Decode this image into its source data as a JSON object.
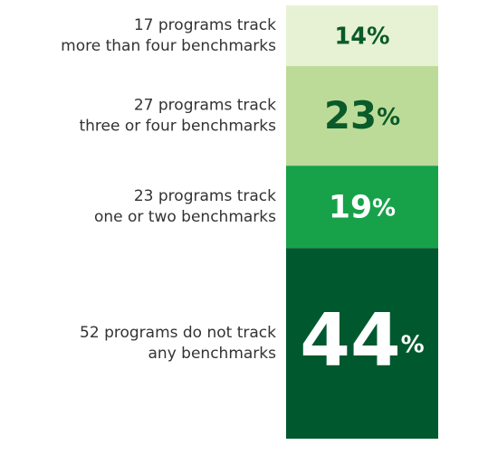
{
  "chart_data": {
    "type": "stacked-column",
    "categories": [
      [
        "17 programs track",
        "more than four benchmarks"
      ],
      [
        "27 programs track",
        "three or four benchmarks"
      ],
      [
        "23 programs track",
        "one or two benchmarks"
      ],
      [
        "52 programs do not track",
        "any benchmarks"
      ]
    ],
    "values": [
      14,
      23,
      19,
      44
    ],
    "unit": "%",
    "colors": [
      "#e6f2d3",
      "#bddb98",
      "#17a24a",
      "#00592e"
    ],
    "text_colors": [
      "#0a5a2a",
      "#0a5a2a",
      "#ffffff",
      "#ffffff"
    ]
  }
}
